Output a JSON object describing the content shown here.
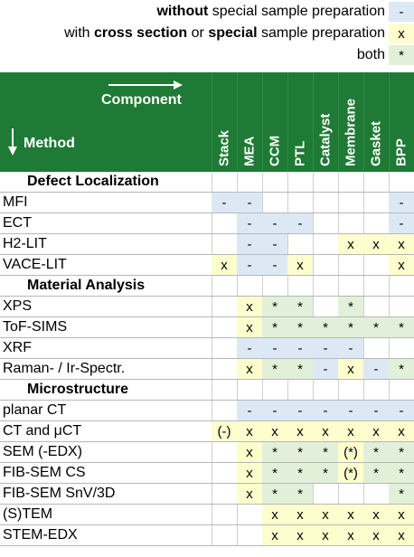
{
  "legend": {
    "items": [
      {
        "parts": [
          {
            "t": "without",
            "b": true
          },
          {
            "t": " special sample preparation",
            "b": false
          }
        ],
        "swatch": "-",
        "color": "#dce9f5"
      },
      {
        "parts": [
          {
            "t": "with ",
            "b": false
          },
          {
            "t": "cross section",
            "b": true
          },
          {
            "t": " or ",
            "b": false
          },
          {
            "t": "special",
            "b": true
          },
          {
            "t": " sample preparation",
            "b": false
          }
        ],
        "swatch": "x",
        "color": "#fefdce"
      },
      {
        "parts": [
          {
            "t": "both",
            "b": false
          }
        ],
        "swatch": "*",
        "color": "#e2f0d9"
      }
    ]
  },
  "header": {
    "component_label": "Component",
    "method_label": "Method",
    "background": "#1e7a34",
    "columns": [
      "Stack",
      "MEA",
      "CCM",
      "PTL",
      "Catalyst",
      "Membrane",
      "Gasket",
      "BPP"
    ]
  },
  "colors": {
    "-": "#dce9f5",
    "x": "#fefdce",
    "*": "#e2f0d9",
    "(-)": "#fefdce",
    "(*)": "#fefdce"
  },
  "rows": [
    {
      "section": true,
      "name": "Defect Localization"
    },
    {
      "name": "MFI",
      "cells": [
        "-",
        "-",
        "",
        "",
        "",
        "",
        "",
        "-"
      ]
    },
    {
      "name": "ECT",
      "cells": [
        "",
        "-",
        "-",
        "-",
        "",
        "",
        "",
        "-"
      ]
    },
    {
      "name": "H2-LIT",
      "cells": [
        "",
        "-",
        "-",
        "",
        "",
        "x",
        "x",
        "x"
      ]
    },
    {
      "name": "VACE-LIT",
      "cells": [
        "x",
        "-",
        "-",
        "x",
        "",
        "",
        "",
        "x"
      ]
    },
    {
      "section": true,
      "name": "Material Analysis"
    },
    {
      "name": "XPS",
      "cells": [
        "",
        "x",
        "*",
        "*",
        "",
        "*",
        "",
        ""
      ]
    },
    {
      "name": "ToF-SIMS",
      "cells": [
        "",
        "x",
        "*",
        "*",
        "*",
        "*",
        "*",
        "*"
      ]
    },
    {
      "name": "XRF",
      "cells": [
        "",
        "-",
        "-",
        "-",
        "-",
        "-",
        "",
        ""
      ]
    },
    {
      "name": "Raman- / Ir-Spectr.",
      "cells": [
        "",
        "x",
        "*",
        "*",
        "-",
        "x",
        "-",
        "*"
      ]
    },
    {
      "section": true,
      "name": "Microstructure"
    },
    {
      "name": "planar CT",
      "cells": [
        "",
        "-",
        "-",
        "-",
        "-",
        "-",
        "-",
        "-"
      ]
    },
    {
      "name": "CT and μCT",
      "cells": [
        "(-)",
        "x",
        "x",
        "x",
        "x",
        "x",
        "x",
        "x"
      ]
    },
    {
      "name": "SEM (-EDX)",
      "cells": [
        "",
        "x",
        "*",
        "*",
        "*",
        "(*)",
        "*",
        "*"
      ]
    },
    {
      "name": "FIB-SEM CS",
      "cells": [
        "",
        "x",
        "*",
        "*",
        "*",
        "(*)",
        "*",
        "*"
      ]
    },
    {
      "name": "FIB-SEM SnV/3D",
      "cells": [
        "",
        "x",
        "*",
        "*",
        "",
        "",
        "",
        "*"
      ]
    },
    {
      "name": "(S)TEM",
      "cells": [
        "",
        "",
        "x",
        "x",
        "x",
        "x",
        "x",
        "x"
      ]
    },
    {
      "name": "STEM-EDX",
      "cells": [
        "",
        "",
        "x",
        "x",
        "x",
        "x",
        "x",
        "x"
      ]
    }
  ]
}
